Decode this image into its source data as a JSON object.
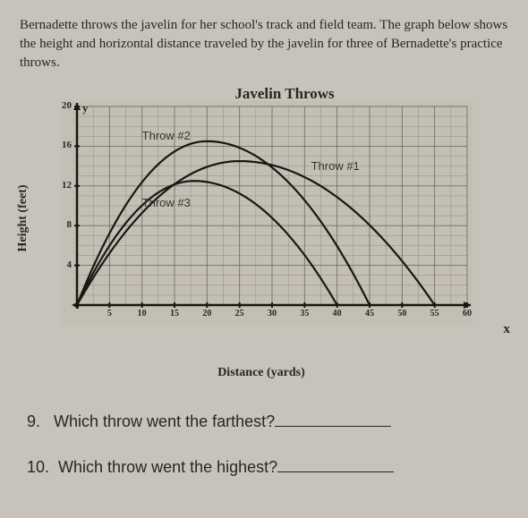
{
  "intro": "Bernadette throws the javelin for her school's track and field team. The graph below shows the height and horizontal distance traveled by the javelin for three of Bernadette's practice throws.",
  "chart": {
    "title": "Javelin Throws",
    "ylabel": "Height (feet)",
    "xlabel": "Distance (yards)",
    "xvar": "x",
    "yvar": "y",
    "xlim": [
      0,
      60
    ],
    "ylim": [
      0,
      20
    ],
    "xtick_step": 5,
    "ytick_step": 4,
    "grid_color": "#6b665c",
    "axis_color": "#1a1612",
    "background_color": "#c4bfb5",
    "curve_width": 2.2,
    "curve_color": "#1a1612",
    "curves": [
      {
        "label": "Throw #1",
        "label_x": 36,
        "label_y": 14,
        "xmax": 55,
        "h": 14.5,
        "peak_x": 25
      },
      {
        "label": "Throw #2",
        "label_x": 10,
        "label_y": 17,
        "xmax": 45,
        "h": 16.5,
        "peak_x": 20
      },
      {
        "label": "Throw #3",
        "label_x": 10,
        "label_y": 10.3,
        "xmax": 40,
        "h": 12.5,
        "peak_x": 18
      }
    ],
    "xticks": [
      5,
      10,
      15,
      20,
      25,
      30,
      35,
      40,
      45,
      50,
      55,
      60
    ],
    "yticks": [
      4,
      8,
      12,
      16,
      20
    ]
  },
  "questions": [
    {
      "num": "9.",
      "text": "Which throw went the farthest?"
    },
    {
      "num": "10.",
      "text": "Which throw went the highest?"
    }
  ]
}
